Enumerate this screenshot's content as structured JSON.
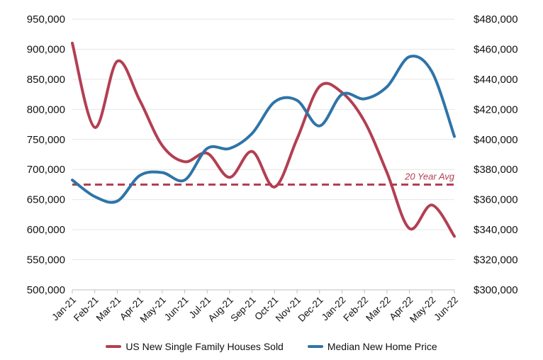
{
  "chart_data": {
    "type": "line",
    "categories": [
      "Jan-21",
      "Feb-21",
      "Mar-21",
      "Apr-21",
      "May-21",
      "Jun-21",
      "Jul-21",
      "Aug-21",
      "Sep-21",
      "Oct-21",
      "Nov-21",
      "Dec-21",
      "Jan-22",
      "Feb-22",
      "Mar-22",
      "Apr-22",
      "May-22",
      "Jun-22"
    ],
    "series": [
      {
        "name": "US New Single Family Houses Sold",
        "axis": "left",
        "color": "#b33f52",
        "values": [
          910000,
          770000,
          880000,
          815000,
          740000,
          713000,
          727000,
          687000,
          730000,
          671000,
          751000,
          838000,
          828000,
          780000,
          695000,
          602000,
          641000,
          589000
        ]
      },
      {
        "name": "Median New Home Price",
        "axis": "right",
        "color": "#2e74a8",
        "values": [
          373000,
          362000,
          359000,
          376000,
          378000,
          373000,
          394000,
          394000,
          404000,
          425000,
          426000,
          409000,
          430000,
          427000,
          435000,
          455000,
          445000,
          402000
        ]
      }
    ],
    "reference_line": {
      "label": "20 Year Avg",
      "value": 675000,
      "axis": "left",
      "color": "#b33f52"
    },
    "y_left": {
      "min": 500000,
      "max": 950000,
      "step": 50000,
      "ticks": [
        "500,000",
        "550,000",
        "600,000",
        "650,000",
        "700,000",
        "750,000",
        "800,000",
        "850,000",
        "900,000",
        "950,000"
      ]
    },
    "y_right": {
      "min": 300000,
      "max": 480000,
      "step": 20000,
      "ticks": [
        "$300,000",
        "$320,000",
        "$340,000",
        "$360,000",
        "$380,000",
        "$400,000",
        "$420,000",
        "$440,000",
        "$460,000",
        "$480,000"
      ]
    },
    "grid": "horizontal",
    "legend_position": "bottom"
  }
}
